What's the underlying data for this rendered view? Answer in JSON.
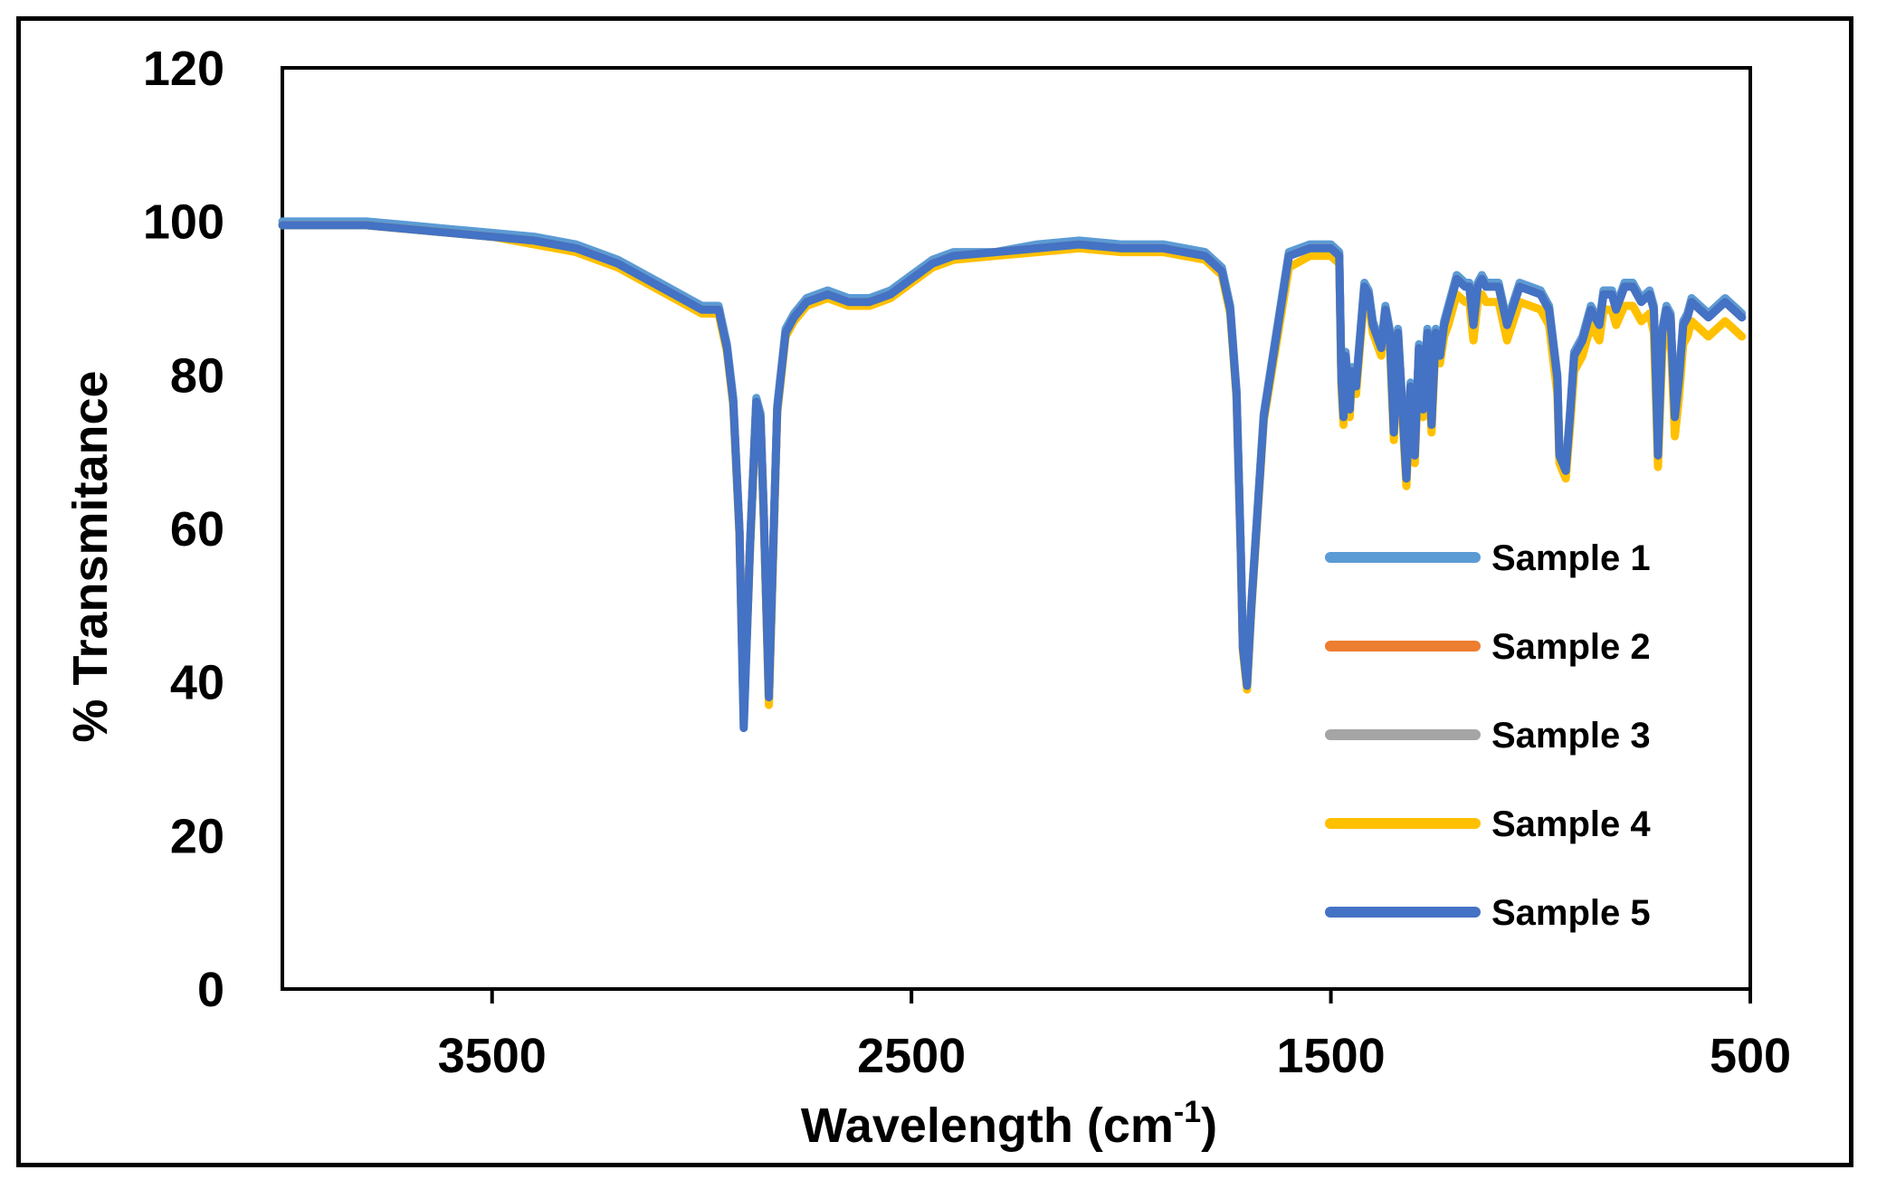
{
  "chart_data": {
    "type": "line",
    "xlabel": "Wavelength (cm",
    "xlabel_sup": "-1",
    "xlabel_suffix": ")",
    "ylabel": "% Transmitance",
    "xlim": [
      4000,
      500
    ],
    "ylim": [
      0,
      120
    ],
    "x_ticks": [
      3500,
      2500,
      1500,
      500
    ],
    "y_ticks": [
      0,
      20,
      40,
      60,
      80,
      100,
      120
    ],
    "grid": false,
    "legend_position": "right",
    "x": [
      4000,
      3900,
      3800,
      3700,
      3600,
      3500,
      3400,
      3300,
      3200,
      3100,
      3000,
      2960,
      2940,
      2925,
      2910,
      2900,
      2885,
      2870,
      2860,
      2852,
      2840,
      2820,
      2800,
      2780,
      2750,
      2700,
      2650,
      2600,
      2550,
      2500,
      2450,
      2400,
      2300,
      2200,
      2100,
      2000,
      1900,
      1800,
      1760,
      1740,
      1725,
      1715,
      1710,
      1700,
      1690,
      1660,
      1600,
      1550,
      1500,
      1480,
      1475,
      1470,
      1465,
      1455,
      1450,
      1440,
      1420,
      1410,
      1400,
      1380,
      1370,
      1360,
      1350,
      1340,
      1320,
      1310,
      1300,
      1290,
      1280,
      1270,
      1260,
      1250,
      1240,
      1230,
      1220,
      1200,
      1180,
      1170,
      1160,
      1150,
      1140,
      1130,
      1100,
      1080,
      1050,
      1000,
      980,
      960,
      955,
      940,
      930,
      920,
      900,
      880,
      870,
      860,
      850,
      830,
      820,
      800,
      780,
      760,
      740,
      730,
      725,
      720,
      710,
      700,
      690,
      680,
      670,
      660,
      650,
      640,
      620,
      600,
      580,
      560,
      540,
      520
    ],
    "series": [
      {
        "name": "Sample 1",
        "color": "#5b9bd5",
        "values": [
          100,
          100,
          100,
          99.5,
          99,
          98.5,
          98,
          97,
          95,
          92,
          89,
          89,
          84,
          77,
          60,
          36,
          58,
          77,
          75,
          62,
          38,
          76,
          86,
          88,
          90,
          91,
          90,
          90,
          91,
          93,
          95,
          96,
          96,
          97,
          97.5,
          97,
          97,
          96,
          94,
          89,
          78,
          58,
          45,
          40,
          50,
          75,
          96,
          97,
          97,
          96,
          80,
          75,
          83,
          76,
          81,
          79,
          92,
          91,
          87,
          84,
          89,
          86,
          73,
          86,
          67,
          79,
          70,
          84,
          76,
          86,
          74,
          86,
          83,
          87,
          89,
          93,
          92,
          92,
          87,
          92,
          93,
          92,
          92,
          87,
          92,
          91,
          89,
          80,
          70,
          68,
          75,
          83,
          85,
          89,
          88,
          87,
          91,
          91,
          89,
          92,
          92,
          90,
          91,
          89,
          80,
          70,
          86,
          89,
          88,
          75,
          80,
          87,
          88,
          90,
          89,
          88,
          89,
          90,
          89,
          88
        ]
      },
      {
        "name": "Sample 2",
        "color": "#ed7d31",
        "values": [
          99.5,
          99.5,
          99.5,
          99,
          98.5,
          98,
          97.5,
          96.5,
          94.5,
          91.5,
          88.5,
          88.5,
          83.5,
          76.5,
          59.5,
          35.5,
          57.5,
          76.5,
          74.5,
          61.5,
          37.5,
          75.5,
          85.5,
          87.5,
          89.5,
          90.5,
          89.5,
          89.5,
          90.5,
          92.5,
          94.5,
          95.5,
          96,
          96.5,
          97,
          96.5,
          96.5,
          95.5,
          93.5,
          88.5,
          77.5,
          57.5,
          44.5,
          39.5,
          49.5,
          74.5,
          95.5,
          96.5,
          96.5,
          95.5,
          79.5,
          74.5,
          82.5,
          75.5,
          80.5,
          78.5,
          91.5,
          90.5,
          86.5,
          83.5,
          88.5,
          85.5,
          72.5,
          85.5,
          66.5,
          78.5,
          69.5,
          83.5,
          75.5,
          85.5,
          73.5,
          85.5,
          82.5,
          86.5,
          88.5,
          92.5,
          91.5,
          91.5,
          86.5,
          91.5,
          92.5,
          91.5,
          91.5,
          86.5,
          91.5,
          90.5,
          88.5,
          79.5,
          69.5,
          67.5,
          74.5,
          82.5,
          84.5,
          88.5,
          87.5,
          86.5,
          90.5,
          90.5,
          88.5,
          91.5,
          91.5,
          89.5,
          90.5,
          88.5,
          79.5,
          69.5,
          85.5,
          88.5,
          87.5,
          74.5,
          79.5,
          86.5,
          87.5,
          89.5,
          88.5,
          87.5,
          88.5,
          89.5,
          88.5,
          87.5
        ]
      },
      {
        "name": "Sample 3",
        "color": "#a5a5a5",
        "values": [
          99.5,
          99.5,
          99.5,
          99,
          98.5,
          98,
          97.5,
          96.5,
          94.5,
          91.5,
          88.5,
          88.5,
          83.5,
          76.5,
          59.5,
          35.5,
          57.5,
          76.5,
          74.5,
          61.5,
          37.5,
          75.5,
          85.5,
          87.5,
          89.5,
          90.5,
          89.5,
          89.5,
          90.5,
          92.5,
          94.5,
          95.5,
          96,
          96.5,
          97,
          96.5,
          96.5,
          95.5,
          93.5,
          88.5,
          77.5,
          57.5,
          44.5,
          39.5,
          49.5,
          74.5,
          95.5,
          96.5,
          96.5,
          95.5,
          79.5,
          74.5,
          82.5,
          75.5,
          80.5,
          78.5,
          91.5,
          90.5,
          86.5,
          83.5,
          88.5,
          85.5,
          72.5,
          85.5,
          66.5,
          78.5,
          69.5,
          83.5,
          75.5,
          85.5,
          73.5,
          85.5,
          82.5,
          86.5,
          88.5,
          92.5,
          91.5,
          91.5,
          86.5,
          91.5,
          92.5,
          91.5,
          91.5,
          86.5,
          91.5,
          90.5,
          88.5,
          79.5,
          69.5,
          67.5,
          74.5,
          82.5,
          84.5,
          88.5,
          87.5,
          86.5,
          90.5,
          90.5,
          88.5,
          91.5,
          91.5,
          89.5,
          90.5,
          88.5,
          79.5,
          69.5,
          85.5,
          88.5,
          87.5,
          74.5,
          79.5,
          86.5,
          87.5,
          89.5,
          88.5,
          87.5,
          88.5,
          89.5,
          88.5,
          87.5
        ]
      },
      {
        "name": "Sample 4",
        "color": "#ffc000",
        "values": [
          99.5,
          99.5,
          99.5,
          99,
          98.5,
          98,
          97,
          96,
          94,
          91,
          88,
          88,
          83,
          76,
          59,
          35,
          57,
          76,
          74,
          61,
          37,
          75,
          85,
          87,
          89,
          90,
          89,
          89,
          90,
          92,
          94,
          95,
          95.5,
          96,
          96.5,
          96,
          96,
          95,
          93,
          88,
          77,
          57,
          44,
          39,
          49,
          74,
          94,
          95.5,
          95.5,
          94.5,
          78.5,
          73.5,
          81.5,
          74.5,
          79.5,
          77.5,
          90.5,
          89.5,
          85.5,
          82.5,
          87.5,
          84.5,
          71.5,
          84.5,
          65.5,
          77.5,
          68.5,
          82.5,
          74.5,
          84.5,
          72.5,
          84.5,
          81.5,
          85,
          86.5,
          90.5,
          89.5,
          89.5,
          84.5,
          89.5,
          90.5,
          89.5,
          89.5,
          84.5,
          89.5,
          88.5,
          86.5,
          77.5,
          68.5,
          66.5,
          73,
          80.5,
          82.5,
          86.5,
          85.5,
          84.5,
          88.5,
          88.5,
          86.5,
          89,
          89,
          87,
          88,
          85.5,
          77,
          68,
          83,
          86,
          85,
          72,
          77,
          84,
          85,
          87,
          86,
          85,
          86,
          87,
          86,
          85
        ]
      },
      {
        "name": "Sample 5",
        "color": "#4472c4",
        "values": [
          99.5,
          99.5,
          99.5,
          99,
          98.5,
          98,
          97.5,
          96.5,
          94.5,
          91.5,
          88.5,
          88.5,
          83.5,
          76.5,
          59.5,
          34,
          57.5,
          76.5,
          74.5,
          61.5,
          38,
          75.5,
          85.5,
          87.5,
          89.5,
          90.5,
          89.5,
          89.5,
          90.5,
          92.5,
          94.5,
          95.5,
          96,
          96.5,
          97,
          96.5,
          96.5,
          95.5,
          93.5,
          88.5,
          77.5,
          57.5,
          44.5,
          39.5,
          49.5,
          74.5,
          95.5,
          96.5,
          96.5,
          95.5,
          79.5,
          74.5,
          82.5,
          75.5,
          80.5,
          78.5,
          91.5,
          90.5,
          86.5,
          83.5,
          88.5,
          85.5,
          72.5,
          85.5,
          66.5,
          78.5,
          69.5,
          83.5,
          75.5,
          85.5,
          73.5,
          85.5,
          82.5,
          86.5,
          88.5,
          92.5,
          91.5,
          91.5,
          86.5,
          91.5,
          92.5,
          91.5,
          91.5,
          86.5,
          91.5,
          90.5,
          88.5,
          79.5,
          69.5,
          67.5,
          74.5,
          82.5,
          84.5,
          88.5,
          87.5,
          86.5,
          90.5,
          90.5,
          88.5,
          91.5,
          91.5,
          89.5,
          90.5,
          88.5,
          79.5,
          69.5,
          85.5,
          88.5,
          87.5,
          74.5,
          79.5,
          86.5,
          87.5,
          89.5,
          88.5,
          87.5,
          88.5,
          89.5,
          88.5,
          87.5
        ]
      }
    ]
  }
}
